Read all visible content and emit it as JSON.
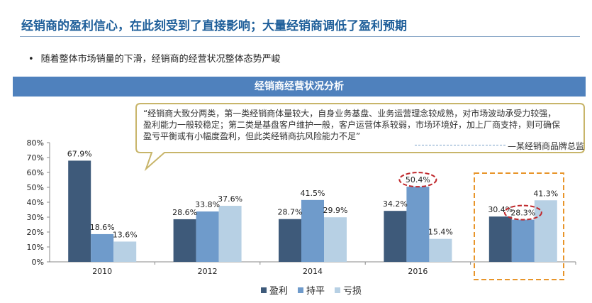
{
  "header": {
    "title": "经销商的盈利信心，在此刻受到了直接影响；大量经销商调低了盈利预期",
    "bullet_mark": "•",
    "bullet": "随着整体市场销量的下滑，经销商的经营状况整体态势严峻",
    "banner": "经销商经营状况分析"
  },
  "callout": {
    "lines": [
      "“经销商大致分两类，第一类经销商体量较大，自身业务基盘、业务运营理念较成熟，对市场波动承受力较强，",
      "盈利能力一般较稳定；第二类是基盘客户维护一般，客户运营体系较弱，市场环境好，加上厂商支持，则可确保",
      "盈亏平衡或有小幅度盈利，但此类经销商抗风险能力不足”"
    ],
    "source": "某经销商品牌总监"
  },
  "colors": {
    "accent": "#1f5f9a",
    "banner": "#4f81bd",
    "callout_border": "#c8b56a",
    "highlight_dashed": "#e8952a",
    "ellipse": "#c0282c"
  },
  "chart_data": {
    "type": "bar",
    "categories": [
      "2010",
      "2012",
      "2014",
      "2016",
      ""
    ],
    "series": [
      {
        "name": "盈利",
        "color": "#3e5a7a",
        "values": [
          67.9,
          28.6,
          28.7,
          34.2,
          30.4
        ]
      },
      {
        "name": "持平",
        "color": "#6f9bcb",
        "values": [
          18.6,
          33.8,
          41.5,
          50.4,
          28.3
        ]
      },
      {
        "name": "亏损",
        "color": "#b7d0e4",
        "values": [
          13.6,
          37.6,
          29.9,
          15.4,
          41.3
        ]
      }
    ],
    "ylim": [
      0,
      80
    ],
    "yticks": [
      "0%",
      "10%",
      "20%",
      "30%",
      "40%",
      "50%",
      "60%",
      "70%",
      "80%"
    ],
    "value_suffix": "%",
    "title": "",
    "xlabel": "",
    "ylabel": "",
    "grid": false,
    "legend": "bottom",
    "highlight_category_index": 4,
    "circled": [
      {
        "series": 1,
        "category": 3
      },
      {
        "series": 1,
        "category": 4
      }
    ]
  }
}
